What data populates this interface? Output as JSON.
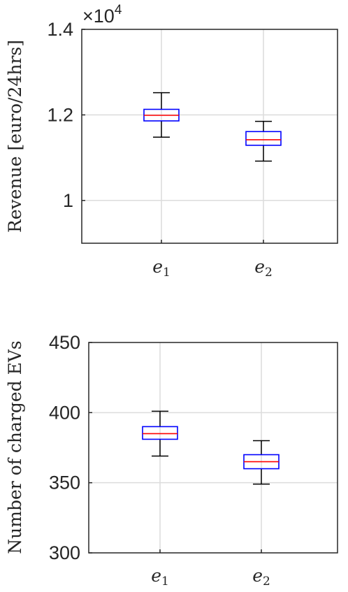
{
  "chart_data": [
    {
      "type": "box",
      "ylabel": "Revenue [euro/24hrs]",
      "ylim": [
        0.9,
        1.4
      ],
      "yticks": [
        "1",
        "1.2",
        "1.4"
      ],
      "ytick_values": [
        1.0,
        1.2,
        1.4
      ],
      "exponent_label": {
        "base": "×10",
        "exp": "4"
      },
      "grid": true,
      "categories": [
        {
          "letter": "e",
          "sub": "1"
        },
        {
          "letter": "e",
          "sub": "2"
        }
      ],
      "boxes": [
        {
          "whisker_low": 1.148,
          "q1": 1.186,
          "median": 1.199,
          "q3": 1.213,
          "whisker_high": 1.252
        },
        {
          "whisker_low": 1.092,
          "q1": 1.129,
          "median": 1.142,
          "q3": 1.161,
          "whisker_high": 1.185
        }
      ],
      "colors": {
        "box": "#0000ff",
        "median": "#ff0000",
        "whisker": "#000000"
      }
    },
    {
      "type": "box",
      "ylabel": "Number of charged EVs",
      "ylim": [
        300,
        450
      ],
      "yticks": [
        "300",
        "350",
        "400",
        "450"
      ],
      "ytick_values": [
        300,
        350,
        400,
        450
      ],
      "grid": true,
      "categories": [
        {
          "letter": "e",
          "sub": "1"
        },
        {
          "letter": "e",
          "sub": "2"
        }
      ],
      "boxes": [
        {
          "whisker_low": 369,
          "q1": 381,
          "median": 385,
          "q3": 390,
          "whisker_high": 401
        },
        {
          "whisker_low": 349,
          "q1": 360,
          "median": 365,
          "q3": 370,
          "whisker_high": 380
        }
      ],
      "colors": {
        "box": "#0000ff",
        "median": "#ff0000",
        "whisker": "#000000"
      }
    }
  ]
}
